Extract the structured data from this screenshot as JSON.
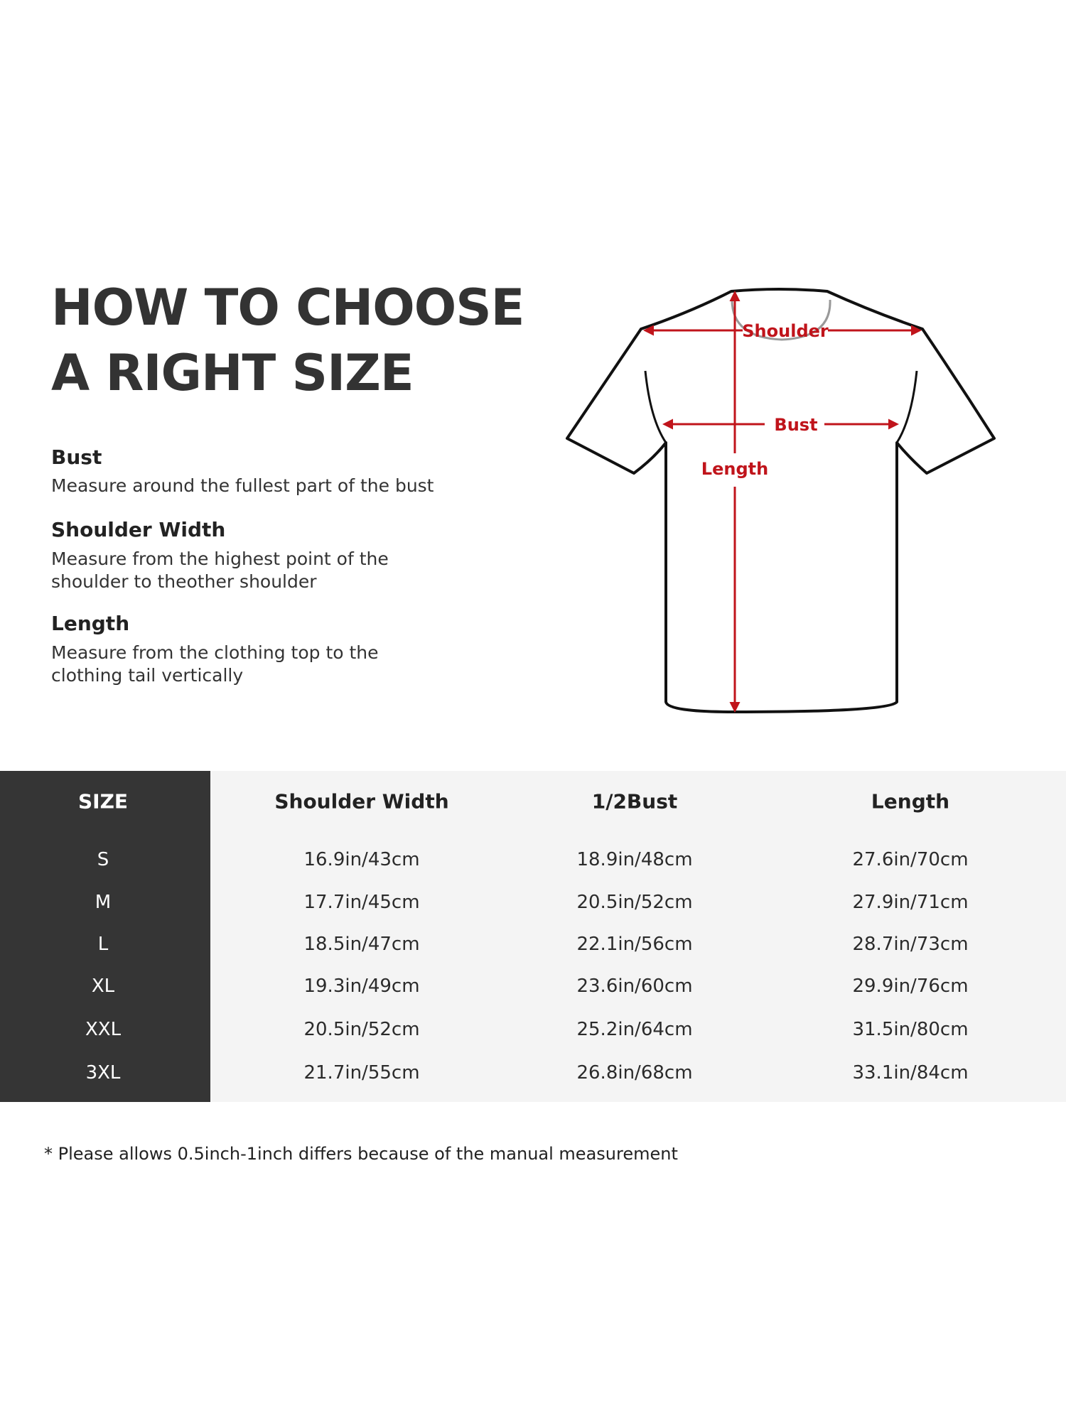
{
  "title": {
    "line1": "HOW TO CHOOSE",
    "line2": "A RIGHT SIZE"
  },
  "guide": [
    {
      "heading": "Bust",
      "desc": [
        "Measure around the fullest part of the bust"
      ]
    },
    {
      "heading": "Shoulder Width",
      "desc": [
        "Measure from the highest point of the",
        "shoulder to theother shoulder"
      ]
    },
    {
      "heading": "Length",
      "desc": [
        "Measure from the clothing top to the",
        "clothing tail vertically"
      ]
    }
  ],
  "diagram": {
    "shoulder": "Shoulder",
    "bust": "Bust",
    "length": "Length",
    "accent_color": "#c0141b"
  },
  "table": {
    "headers": [
      "SIZE",
      "Shoulder Width",
      "1/2Bust",
      "Length"
    ],
    "rows": [
      [
        "S",
        "16.9in/43cm",
        "18.9in/48cm",
        "27.6in/70cm"
      ],
      [
        "M",
        "17.7in/45cm",
        "20.5in/52cm",
        "27.9in/71cm"
      ],
      [
        "L",
        "18.5in/47cm",
        "22.1in/56cm",
        "28.7in/73cm"
      ],
      [
        "XL",
        "19.3in/49cm",
        "23.6in/60cm",
        "29.9in/76cm"
      ],
      [
        "XXL",
        "20.5in/52cm",
        "25.2in/64cm",
        "31.5in/80cm"
      ],
      [
        "3XL",
        "21.7in/55cm",
        "26.8in/68cm",
        "33.1in/84cm"
      ]
    ]
  },
  "footnote": "* Please allows 0.5inch-1inch differs because of the  manual measurement"
}
